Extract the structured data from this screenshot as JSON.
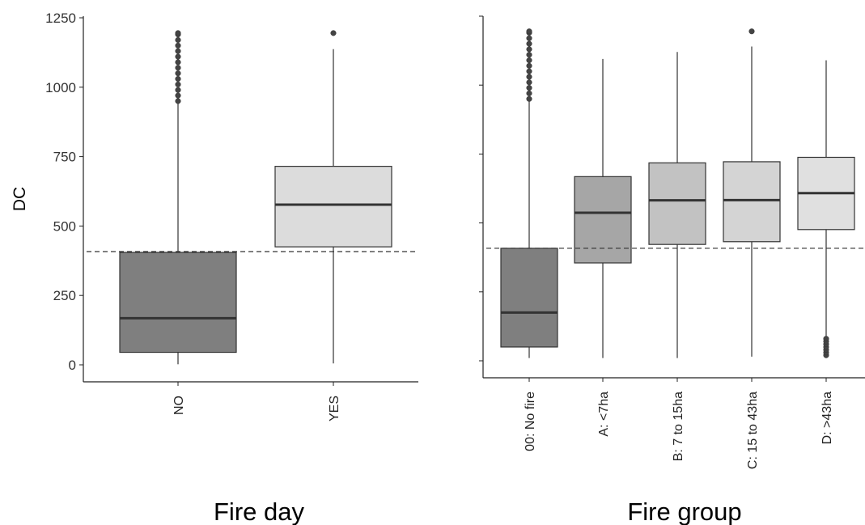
{
  "chart_data": [
    {
      "type": "box",
      "xlabel": "Fire day",
      "ylabel": "DC",
      "ylim": [
        -60,
        1250
      ],
      "yticks": [
        0,
        250,
        500,
        750,
        1000,
        1250
      ],
      "grid": false,
      "reference_line": {
        "y": 408,
        "style": "dashed"
      },
      "categories": [
        "NO",
        "YES"
      ],
      "boxes": [
        {
          "category": "NO",
          "whisker_low": 2,
          "q1": 45,
          "median": 168,
          "q3": 405,
          "whisker_high": 945,
          "outliers": [
            950,
            970,
            990,
            1010,
            1030,
            1050,
            1070,
            1090,
            1110,
            1130,
            1150,
            1170,
            1190,
            1195
          ],
          "fill": "#7f7f7f"
        },
        {
          "category": "YES",
          "whisker_low": 5,
          "q1": 425,
          "median": 577,
          "q3": 715,
          "whisker_high": 1137,
          "outliers": [
            1195
          ],
          "fill": "#dcdcdc"
        }
      ]
    },
    {
      "type": "box",
      "xlabel": "Fire group",
      "ylabel": "",
      "ylim": [
        -60,
        1250
      ],
      "yticks": [
        0,
        250,
        500,
        750,
        1000,
        1250
      ],
      "grid": false,
      "reference_line": {
        "y": 408,
        "style": "dashed"
      },
      "categories": [
        "00: No fire",
        "A: <7ha",
        "B: 7 to 15ha",
        "C: 15 to 43ha",
        "D: >43ha"
      ],
      "boxes": [
        {
          "category": "00: No fire",
          "whisker_low": 10,
          "q1": 50,
          "median": 175,
          "q3": 408,
          "whisker_high": 945,
          "outliers": [
            950,
            970,
            990,
            1010,
            1030,
            1050,
            1070,
            1090,
            1110,
            1130,
            1150,
            1170,
            1190,
            1195
          ],
          "fill": "#7f7f7f"
        },
        {
          "category": "A: <7ha",
          "whisker_low": 10,
          "q1": 355,
          "median": 537,
          "q3": 668,
          "whisker_high": 1095,
          "outliers": [],
          "fill": "#a6a6a6"
        },
        {
          "category": "B: 7 to 15ha",
          "whisker_low": 10,
          "q1": 422,
          "median": 582,
          "q3": 718,
          "whisker_high": 1120,
          "outliers": [],
          "fill": "#c2c2c2"
        },
        {
          "category": "C: 15 to 43ha",
          "whisker_low": 15,
          "q1": 432,
          "median": 583,
          "q3": 722,
          "whisker_high": 1140,
          "outliers": [
            1195
          ],
          "fill": "#d4d4d4"
        },
        {
          "category": "D: >43ha",
          "whisker_low": 90,
          "q1": 476,
          "median": 608,
          "q3": 738,
          "whisker_high": 1090,
          "outliers": [
            20,
            30,
            40,
            50,
            60,
            70,
            80
          ],
          "fill": "#e0e0e0"
        }
      ]
    }
  ]
}
